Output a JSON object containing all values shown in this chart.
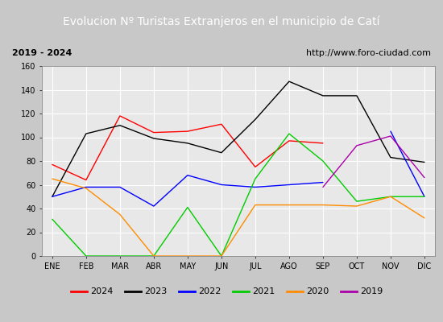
{
  "title": "Evolucion Nº Turistas Extranjeros en el municipio de Catí",
  "subtitle_left": "2019 - 2024",
  "subtitle_right": "http://www.foro-ciudad.com",
  "months": [
    "ENE",
    "FEB",
    "MAR",
    "ABR",
    "MAY",
    "JUN",
    "JUL",
    "AGO",
    "SEP",
    "OCT",
    "NOV",
    "DIC"
  ],
  "series": {
    "2024": [
      77,
      64,
      118,
      104,
      105,
      111,
      75,
      97,
      95,
      null,
      null,
      null
    ],
    "2023": [
      50,
      103,
      110,
      99,
      95,
      87,
      115,
      147,
      135,
      135,
      83,
      79
    ],
    "2022": [
      50,
      58,
      58,
      42,
      68,
      60,
      58,
      60,
      62,
      null,
      105,
      50
    ],
    "2021": [
      31,
      0,
      0,
      0,
      41,
      0,
      65,
      103,
      80,
      46,
      50,
      50
    ],
    "2020": [
      65,
      57,
      35,
      0,
      0,
      0,
      43,
      43,
      43,
      42,
      50,
      32
    ],
    "2019": [
      null,
      null,
      null,
      null,
      null,
      null,
      null,
      null,
      58,
      93,
      101,
      66
    ]
  },
  "colors": {
    "2024": "#ff0000",
    "2023": "#000000",
    "2022": "#0000ff",
    "2021": "#00cc00",
    "2020": "#ff8c00",
    "2019": "#aa00aa"
  },
  "ylim": [
    0,
    160
  ],
  "yticks": [
    0,
    20,
    40,
    60,
    80,
    100,
    120,
    140,
    160
  ],
  "chart_bg": "#e8e8e8",
  "title_bg": "#4d7ebf",
  "title_color": "#ffffff",
  "subtitle_bg": "#ffffff",
  "outer_bg": "#c8c8c8",
  "grid_color": "#ffffff",
  "legend_years": [
    "2024",
    "2023",
    "2022",
    "2021",
    "2020",
    "2019"
  ]
}
